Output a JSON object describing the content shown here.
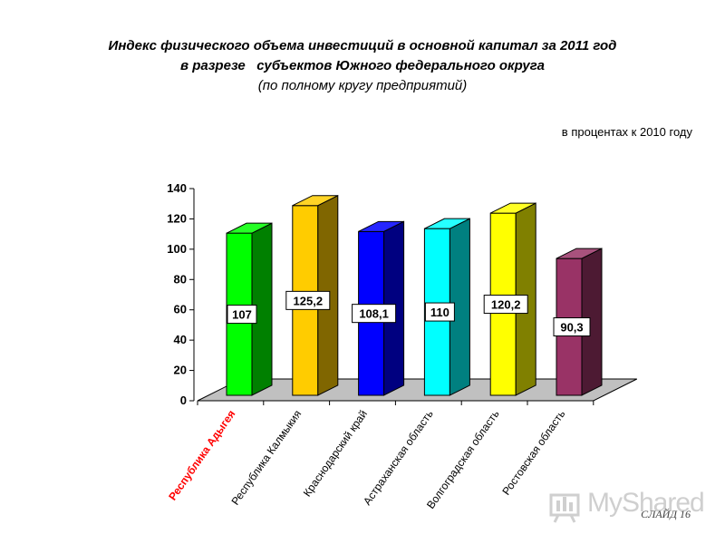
{
  "title_line1": "Индекс физического объема инвестиций в основной капитал за 2011 год",
  "title_line2": "в разрезе   субъектов Южного федерального округа",
  "title_line3": "(по полному кругу предприятий)",
  "unit_label": "в процентах к 2010 году",
  "watermark_text": "MyShared",
  "slide_label": "СЛАЙД  16",
  "chart_data": {
    "type": "bar",
    "categories": [
      "Республика Адыгея",
      "Республика Калмыкия",
      "Краснодарский край",
      "Астраханская область",
      "Волгоградская область",
      "Ростовская область"
    ],
    "values": [
      107,
      125.2,
      108.1,
      110,
      120.2,
      90.3
    ],
    "value_labels": [
      "107",
      "125,2",
      "108,1",
      "110",
      "120,2",
      "90,3"
    ],
    "ylim": [
      0,
      140
    ],
    "yticks": [
      0,
      20,
      40,
      60,
      80,
      100,
      120,
      140
    ],
    "colors": [
      "#00ff00",
      "#ffcc00",
      "#0000ff",
      "#00ffff",
      "#ffff00",
      "#993366"
    ],
    "highlight_category_color": "#ff0000",
    "grid": false,
    "style": "3d"
  }
}
